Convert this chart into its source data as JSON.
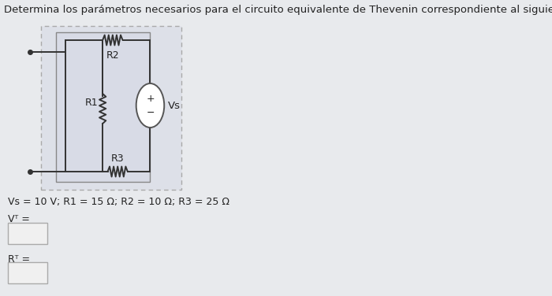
{
  "title": "Determina los parámetros necesarios para el circuito equivalente de Thevenin correspondiente al siguiente diagrama.",
  "title_fontsize": 9.5,
  "background_color": "#e8eaed",
  "wire_color": "#333333",
  "resistor_color": "#333333",
  "source_color": "#555555",
  "text_color": "#222222",
  "params_text": "Vs = 10 V; R1 = 15 Ω; R2 = 10 Ω; R3 = 25 Ω",
  "vt_label": "Vᵀ =",
  "rt_label": "Rᵀ =",
  "input_box_color": "#f0f0f0",
  "input_box_border": "#aaaaaa",
  "outer_box_color": "#dde0e8",
  "inner_box_color": "#d8dbe6"
}
